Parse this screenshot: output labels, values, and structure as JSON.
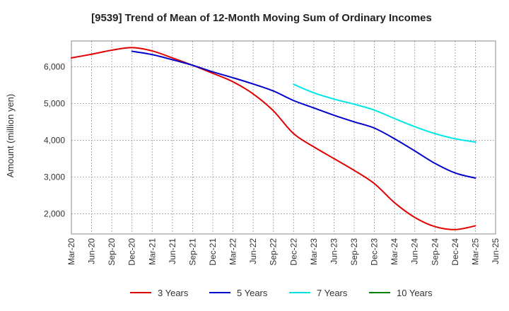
{
  "chart_data": {
    "type": "line",
    "title": "[9539]  Trend of Mean of 12-Month Moving Sum of Ordinary Incomes",
    "xlabel": "",
    "ylabel": "Amount (million yen)",
    "ylim": [
      1450,
      6700
    ],
    "yticks": [
      2000,
      3000,
      4000,
      5000,
      6000
    ],
    "ytick_labels": [
      "2,000",
      "3,000",
      "4,000",
      "5,000",
      "6,000"
    ],
    "categories": [
      "Mar-20",
      "Jun-20",
      "Sep-20",
      "Dec-20",
      "Mar-21",
      "Jun-21",
      "Sep-21",
      "Dec-21",
      "Mar-22",
      "Jun-22",
      "Sep-22",
      "Dec-22",
      "Mar-23",
      "Jun-23",
      "Sep-23",
      "Dec-23",
      "Mar-24",
      "Jun-24",
      "Sep-24",
      "Dec-24",
      "Mar-25",
      "Jun-25"
    ],
    "grid": true,
    "legend_position": "bottom",
    "series": [
      {
        "name": "3 Years",
        "color": "#e00000",
        "values": [
          6240,
          6340,
          6450,
          6520,
          6430,
          6240,
          6040,
          5820,
          5590,
          5260,
          4800,
          4180,
          3820,
          3500,
          3180,
          2820,
          2300,
          1900,
          1650,
          1570,
          1670,
          null
        ]
      },
      {
        "name": "5 Years",
        "color": "#0000cc",
        "values": [
          null,
          null,
          null,
          6420,
          6330,
          6190,
          6040,
          5860,
          5700,
          5530,
          5340,
          5080,
          4880,
          4680,
          4500,
          4330,
          4040,
          3710,
          3370,
          3110,
          2970,
          null
        ]
      },
      {
        "name": "7 Years",
        "color": "#00e5e5",
        "values": [
          null,
          null,
          null,
          null,
          null,
          null,
          null,
          null,
          null,
          null,
          null,
          5520,
          5290,
          5120,
          4980,
          4820,
          4590,
          4370,
          4180,
          4040,
          3950,
          null
        ]
      },
      {
        "name": "10 Years",
        "color": "#008000",
        "values": [
          null,
          null,
          null,
          null,
          null,
          null,
          null,
          null,
          null,
          null,
          null,
          null,
          null,
          null,
          null,
          null,
          null,
          null,
          null,
          null,
          null,
          null
        ]
      }
    ]
  }
}
